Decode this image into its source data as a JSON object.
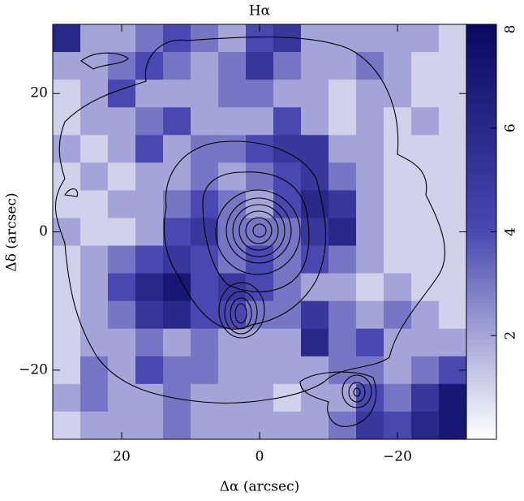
{
  "chart_data": {
    "type": "heatmap",
    "title": "Hα",
    "x_label": "Δα (arcsec)",
    "y_label": "Δδ (arcsec)",
    "x": [
      28,
      24,
      20,
      16,
      12,
      8,
      4,
      0,
      -4,
      -8,
      -12,
      -16,
      -20,
      -24,
      -28
    ],
    "y": [
      28,
      24,
      20,
      16,
      12,
      8,
      4,
      0,
      -4,
      -8,
      -12,
      -16,
      -20,
      -24,
      -28
    ],
    "z": [
      [
        6,
        2,
        2,
        3,
        4,
        3,
        2,
        4,
        5,
        2,
        2,
        2,
        2,
        2,
        1
      ],
      [
        2,
        2,
        3,
        4,
        3,
        2,
        3,
        5,
        3,
        2,
        2,
        3,
        2,
        1,
        1
      ],
      [
        1,
        2,
        4,
        2,
        2,
        2,
        3,
        3,
        2,
        2,
        1,
        2,
        2,
        1,
        1
      ],
      [
        1,
        2,
        2,
        3,
        4,
        2,
        2,
        2,
        4,
        2,
        1,
        2,
        1,
        2,
        1
      ],
      [
        2,
        1,
        2,
        4,
        2,
        3,
        3,
        4,
        5,
        5,
        2,
        2,
        1,
        1,
        1
      ],
      [
        1,
        2,
        1,
        2,
        2,
        3,
        2,
        3,
        4,
        5,
        3,
        2,
        1,
        1,
        1
      ],
      [
        1,
        1,
        2,
        2,
        3,
        4,
        3,
        2,
        4,
        6,
        5,
        2,
        1,
        1,
        1
      ],
      [
        2,
        1,
        1,
        2,
        4,
        5,
        3,
        3,
        3,
        5,
        6,
        2,
        1,
        1,
        1
      ],
      [
        1,
        2,
        3,
        4,
        5,
        4,
        3,
        4,
        3,
        4,
        3,
        2,
        1,
        1,
        1
      ],
      [
        1,
        2,
        4,
        6,
        7,
        4,
        5,
        4,
        3,
        2,
        2,
        1,
        2,
        1,
        1
      ],
      [
        1,
        2,
        3,
        5,
        6,
        4,
        4,
        3,
        3,
        5,
        3,
        2,
        3,
        2,
        1
      ],
      [
        1,
        2,
        2,
        3,
        2,
        3,
        2,
        2,
        2,
        6,
        3,
        4,
        2,
        2,
        2
      ],
      [
        1,
        3,
        2,
        4,
        3,
        3,
        2,
        2,
        2,
        2,
        3,
        3,
        2,
        3,
        4
      ],
      [
        2,
        3,
        2,
        2,
        3,
        2,
        2,
        2,
        1,
        2,
        2,
        4,
        3,
        5,
        7
      ],
      [
        1,
        2,
        2,
        2,
        3,
        2,
        2,
        2,
        2,
        2,
        3,
        5,
        4,
        6,
        7
      ]
    ],
    "xlim": [
      30,
      -30
    ],
    "ylim": [
      -30,
      30
    ],
    "xticks": [
      20,
      0,
      {
        "value": -20,
        "label": "−20"
      }
    ],
    "yticks": [
      {
        "value": -20,
        "label": "−20"
      },
      0,
      20
    ],
    "clim": [
      0,
      8
    ],
    "cticks": [
      2,
      4,
      6,
      8
    ],
    "colors": [
      "#ffffff",
      "#4848b0",
      "#080860"
    ]
  }
}
